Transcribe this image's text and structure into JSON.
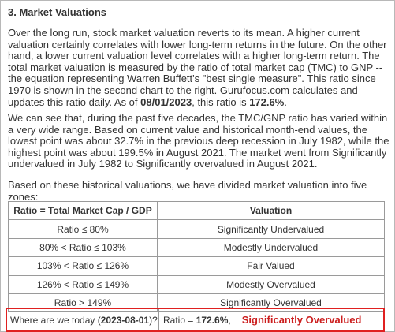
{
  "section": {
    "heading": "3. Market Valuations"
  },
  "paragraph1": {
    "text_before_date": "Over the long run, stock market valuation reverts to its mean. A higher current valuation certainly correlates with lower long-term returns in the future. On the other hand, a lower current valuation level correlates with a higher long-term return. The total market valuation is measured by the ratio of total market cap (TMC) to GNP -- the equation representing Warren Buffett's \"best single measure\". This ratio since 1970 is shown in the second chart to the right. Gurufocus.com calculates and updates this ratio daily. As of ",
    "date": "08/01/2023",
    "text_middle": ", this ratio is ",
    "ratio": "172.6%",
    "text_end": "."
  },
  "paragraph2": {
    "text": "We can see that, during the past five decades, the TMC/GNP ratio has varied within a very wide range. Based on current value and historical month-end values, the lowest point was about 32.7% in the previous deep recession in July 1982, while the highest point was about 199.5% in August 2021. The market went from Significantly undervalued in July 1982 to Significantly overvalued in August 2021."
  },
  "paragraph3": {
    "text": "Based on these historical valuations, we have divided market valuation into five zones:"
  },
  "table": {
    "headers": [
      "Ratio = Total Market Cap / GDP",
      "Valuation"
    ],
    "rows": [
      {
        "ratio": "Ratio ≤ 80%",
        "valuation": "Significantly Undervalued"
      },
      {
        "ratio": "80% < Ratio ≤ 103%",
        "valuation": "Modestly Undervalued"
      },
      {
        "ratio": "103% < Ratio ≤ 126%",
        "valuation": "Fair Valued"
      },
      {
        "ratio": "126% < Ratio ≤ 149%",
        "valuation": "Modestly Overvalued"
      },
      {
        "ratio": "Ratio > 149%",
        "valuation": "Significantly Overvalued"
      }
    ]
  },
  "today": {
    "question_prefix": "Where are we today (",
    "date": "2023-08-01",
    "question_suffix": ")?",
    "ratio_prefix": "Ratio = ",
    "ratio_value": "172.6%",
    "ratio_suffix": ",",
    "verdict": "Significantly Overvalued",
    "verdict_color": "#cc1f1f",
    "highlight_color": "#e02020"
  }
}
